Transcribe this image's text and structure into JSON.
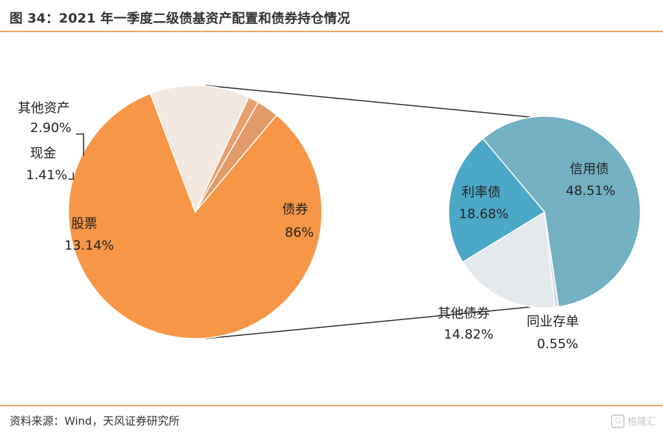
{
  "title": "图 34：2021 年一季度二级债基资产配置和债券持仓情况",
  "source": "资料来源：Wind，天风证券研究所",
  "watermark": {
    "icon": "gelonghui-logo-icon",
    "text": "格隆汇"
  },
  "colors": {
    "accent_rule": "#f0a15c",
    "bond": "#f79646",
    "stock": "#f2e8df",
    "cash": "#e8a06f",
    "other_asset": "#e29a6a",
    "credit": "#72b0c2",
    "rate": "#4ba8c6",
    "interbank": "#d8dee2",
    "other_bond": "#e3e9ed"
  },
  "chart_data": [
    {
      "type": "pie",
      "categories": [
        "债券",
        "股票",
        "现金",
        "其他资产"
      ],
      "values": [
        86,
        13.14,
        1.41,
        2.9
      ],
      "value_labels": [
        "86%",
        "13.14%",
        "1.41%",
        "2.90%"
      ]
    },
    {
      "type": "pie",
      "categories": [
        "信用债",
        "同业存单",
        "其他债券",
        "利率债"
      ],
      "values": [
        48.51,
        0.55,
        14.82,
        18.68
      ],
      "value_labels": [
        "48.51%",
        "0.55%",
        "14.82%",
        "18.68%"
      ]
    }
  ]
}
